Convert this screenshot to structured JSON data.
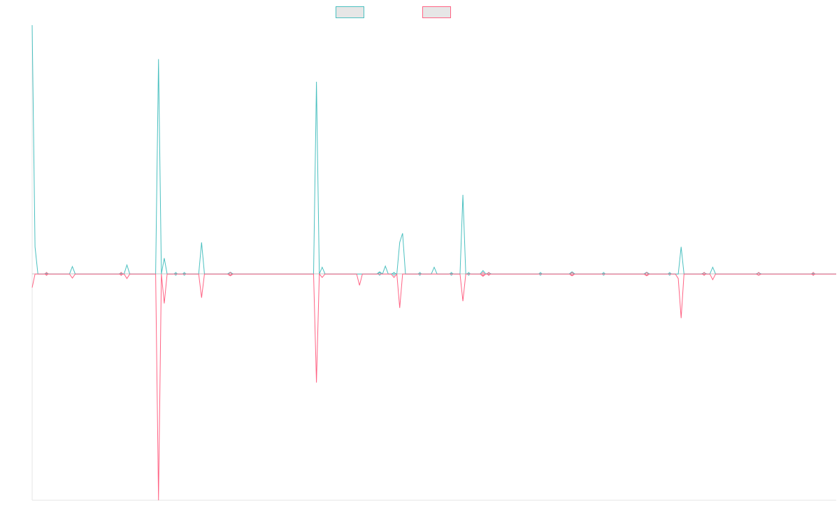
{
  "chart_data": {
    "type": "line",
    "title": "",
    "xlabel": "",
    "ylabel": "",
    "ylim": [
      -100,
      110
    ],
    "grid": false,
    "legend_position": "top-center",
    "series": [
      {
        "name": "",
        "color": "#4bc0c0",
        "fill": "#e6e6e6",
        "values": [
          110,
          12,
          0,
          0,
          0,
          0.3,
          0,
          0,
          0,
          0,
          0,
          0,
          0,
          0,
          3.3,
          0,
          0,
          0,
          0,
          0,
          0,
          0,
          0,
          0,
          0,
          0,
          0,
          0,
          0,
          0,
          0,
          0.3,
          0,
          4,
          0,
          0,
          0,
          0,
          0,
          0,
          0,
          0,
          0,
          0,
          95,
          0,
          7,
          0,
          0,
          0,
          0.2,
          0,
          0,
          0.2,
          0,
          0,
          0,
          0,
          0,
          14,
          0,
          0,
          0,
          0,
          0,
          0,
          0,
          0,
          0,
          0.8,
          0,
          0,
          0,
          0,
          0,
          0,
          0,
          0,
          0,
          0,
          0,
          0,
          0,
          0,
          0,
          0,
          0,
          0,
          0,
          0,
          0,
          0,
          0,
          0,
          0,
          0,
          0,
          0,
          0,
          85,
          0,
          3,
          0,
          0,
          0,
          0,
          0,
          0,
          0,
          0,
          0,
          0,
          0,
          0,
          0,
          0,
          0,
          0,
          0,
          0,
          0,
          1,
          0,
          3.5,
          0,
          0,
          0.5,
          0,
          14,
          18,
          0,
          0,
          0,
          0,
          0,
          0.2,
          0,
          0,
          0,
          0,
          3,
          0,
          0,
          0,
          0,
          0,
          0.3,
          0,
          0,
          0,
          35,
          0,
          0.2,
          0,
          0,
          0,
          0,
          1.5,
          0,
          0.5,
          0,
          0,
          0,
          0,
          0,
          0,
          0,
          0,
          0,
          0,
          0,
          0,
          0,
          0,
          0,
          0,
          0,
          0.2,
          0,
          0,
          0,
          0,
          0,
          0,
          0,
          0,
          0,
          0,
          1,
          0,
          0,
          0,
          0,
          0,
          0,
          0,
          0,
          0,
          0,
          0.2,
          0,
          0,
          0,
          0,
          0,
          0,
          0,
          0,
          0,
          0,
          0,
          0,
          0,
          0,
          0.8,
          0,
          0,
          0,
          0,
          0,
          0,
          0,
          0.2,
          0,
          0,
          0,
          12,
          0,
          0,
          0,
          0,
          0,
          0,
          0,
          0.5,
          0,
          0,
          3,
          0,
          0,
          0,
          0,
          0,
          0,
          0,
          0,
          0,
          0,
          0,
          0,
          0,
          0,
          0,
          0.5,
          0,
          0,
          0,
          0,
          0,
          0,
          0,
          0,
          0,
          0,
          0,
          0,
          0,
          0,
          0,
          0,
          0,
          0,
          0.2,
          0,
          0,
          0,
          0,
          0,
          0,
          0,
          0
        ]
      },
      {
        "name": "",
        "color": "#ff6384",
        "fill": "#e6e6e6",
        "values": [
          -6,
          0,
          0,
          0,
          0,
          -0.2,
          0,
          0,
          0,
          0,
          0,
          0,
          0,
          0,
          -1.8,
          0,
          0,
          0,
          0,
          0,
          0,
          0,
          0,
          0,
          0,
          0,
          0,
          0,
          0,
          0,
          0,
          -0.3,
          0,
          -2,
          0,
          0,
          0,
          0,
          0,
          0,
          0,
          0,
          0,
          0,
          -100,
          0,
          -13,
          0,
          0,
          0,
          0,
          0,
          0,
          0,
          0,
          0,
          0,
          0,
          0,
          -10.5,
          0,
          0,
          0,
          0,
          0,
          0,
          0,
          0,
          0,
          -0.8,
          0,
          0,
          0,
          0,
          0,
          0,
          0,
          0,
          0,
          0,
          0,
          0,
          0,
          0,
          0,
          0,
          0,
          0,
          0,
          0,
          0,
          0,
          0,
          0,
          0,
          0,
          0,
          0,
          0,
          -48,
          0,
          -1.5,
          0,
          0,
          0,
          0,
          0,
          0,
          0,
          0,
          0,
          0,
          0,
          0,
          -5,
          0,
          0,
          0,
          0,
          0,
          0,
          0,
          0,
          0,
          0,
          0,
          -1.5,
          0,
          -15,
          0,
          0,
          0,
          0,
          0,
          0,
          0,
          0,
          0,
          0,
          0,
          0,
          0,
          0,
          0,
          0,
          0,
          0,
          0,
          0,
          0,
          -12,
          0,
          0,
          0,
          0,
          0,
          0,
          -1,
          0,
          -0.3,
          0,
          0,
          0,
          0,
          0,
          0,
          0,
          0,
          0,
          0,
          0,
          0,
          0,
          0,
          0,
          0,
          0,
          0,
          0,
          0,
          0,
          0,
          0,
          0,
          0,
          0,
          0,
          0,
          -0.8,
          0,
          0,
          0,
          0,
          0,
          0,
          0,
          0,
          0,
          0,
          0,
          0,
          0,
          0,
          0,
          0,
          0,
          0,
          0,
          0,
          0,
          0,
          0,
          0,
          0,
          -0.8,
          0,
          0,
          0,
          0,
          0,
          0,
          0,
          0,
          0,
          0,
          -2,
          -19.5,
          0,
          0,
          0,
          0,
          0,
          0,
          0,
          -0.3,
          0,
          0,
          -2.5,
          0,
          0,
          0,
          0,
          0,
          0,
          0,
          0,
          0,
          0,
          0,
          0,
          0,
          0,
          0,
          -0.5,
          0,
          0,
          0,
          0,
          0,
          0,
          0,
          0,
          0,
          0,
          0,
          0,
          0,
          0,
          0,
          0,
          0,
          0,
          -0.3,
          0,
          0,
          0,
          0,
          0,
          0,
          0,
          0
        ]
      }
    ]
  }
}
